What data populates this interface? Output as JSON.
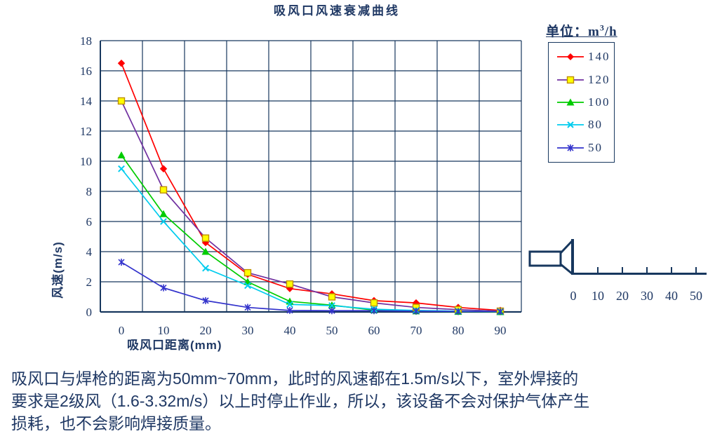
{
  "chart_data": {
    "type": "line",
    "title": "吸风口风速衰减曲线",
    "xlabel": "吸风口距离(mm)",
    "ylabel": "风速(m/s)",
    "x": [
      0,
      10,
      20,
      30,
      40,
      50,
      60,
      70,
      80,
      90
    ],
    "ylim": [
      0,
      18
    ],
    "ytick_step": 2,
    "grid": true,
    "legend_position": "right",
    "legend_unit": {
      "prefix": "单位：",
      "base": "m",
      "sup": "3",
      "suffix": "/h"
    },
    "series": [
      {
        "name": "140",
        "marker": "diamond",
        "color": "#FF0000",
        "marker_fill": "#FF0000",
        "marker_stroke": "#FF0000",
        "values": [
          16.5,
          9.5,
          4.6,
          2.5,
          1.55,
          1.2,
          0.75,
          0.6,
          0.3,
          0.1
        ]
      },
      {
        "name": "120",
        "marker": "square",
        "color": "#7030A0",
        "marker_fill": "#FFFF00",
        "marker_stroke": "#BF8F00",
        "values": [
          14.0,
          8.1,
          4.9,
          2.6,
          1.85,
          1.0,
          0.6,
          0.3,
          0.15,
          0.05
        ]
      },
      {
        "name": "100",
        "marker": "triangle",
        "color": "#00CC00",
        "marker_fill": "#00CC00",
        "marker_stroke": "#00AA00",
        "values": [
          10.4,
          6.5,
          4.0,
          2.0,
          0.7,
          0.45,
          0.12,
          0.05,
          0.02,
          0.0
        ]
      },
      {
        "name": "80",
        "marker": "x",
        "color": "#00CCEE",
        "marker_fill": "#00CCEE",
        "marker_stroke": "#00CCEE",
        "values": [
          9.5,
          6.0,
          2.9,
          1.75,
          0.5,
          0.42,
          0.18,
          0.1,
          0.05,
          0.02
        ]
      },
      {
        "name": "50",
        "marker": "star",
        "color": "#3333CC",
        "marker_fill": "#3333CC",
        "marker_stroke": "#3333CC",
        "values": [
          3.3,
          1.6,
          0.75,
          0.3,
          0.1,
          0.08,
          0.08,
          0.05,
          0.03,
          0.02
        ]
      }
    ]
  },
  "nozzle_diagram": {
    "ruler_labels": [
      "0",
      "10",
      "20",
      "30",
      "40",
      "50"
    ]
  },
  "paragraph": {
    "lines": [
      "吸风口与焊枪的距离为50mm~70mm，此时的风速都在1.5m/s以下，室外焊接的",
      "要求是2级风（1.6-3.32m/s）以上时停止作业，所以，该设备不会对保护气体产生",
      "损耗，也不会影响焊接质量。"
    ]
  },
  "colors": {
    "text": "#1F3864",
    "grid": "#17375E",
    "background": "#FFFFFF"
  }
}
